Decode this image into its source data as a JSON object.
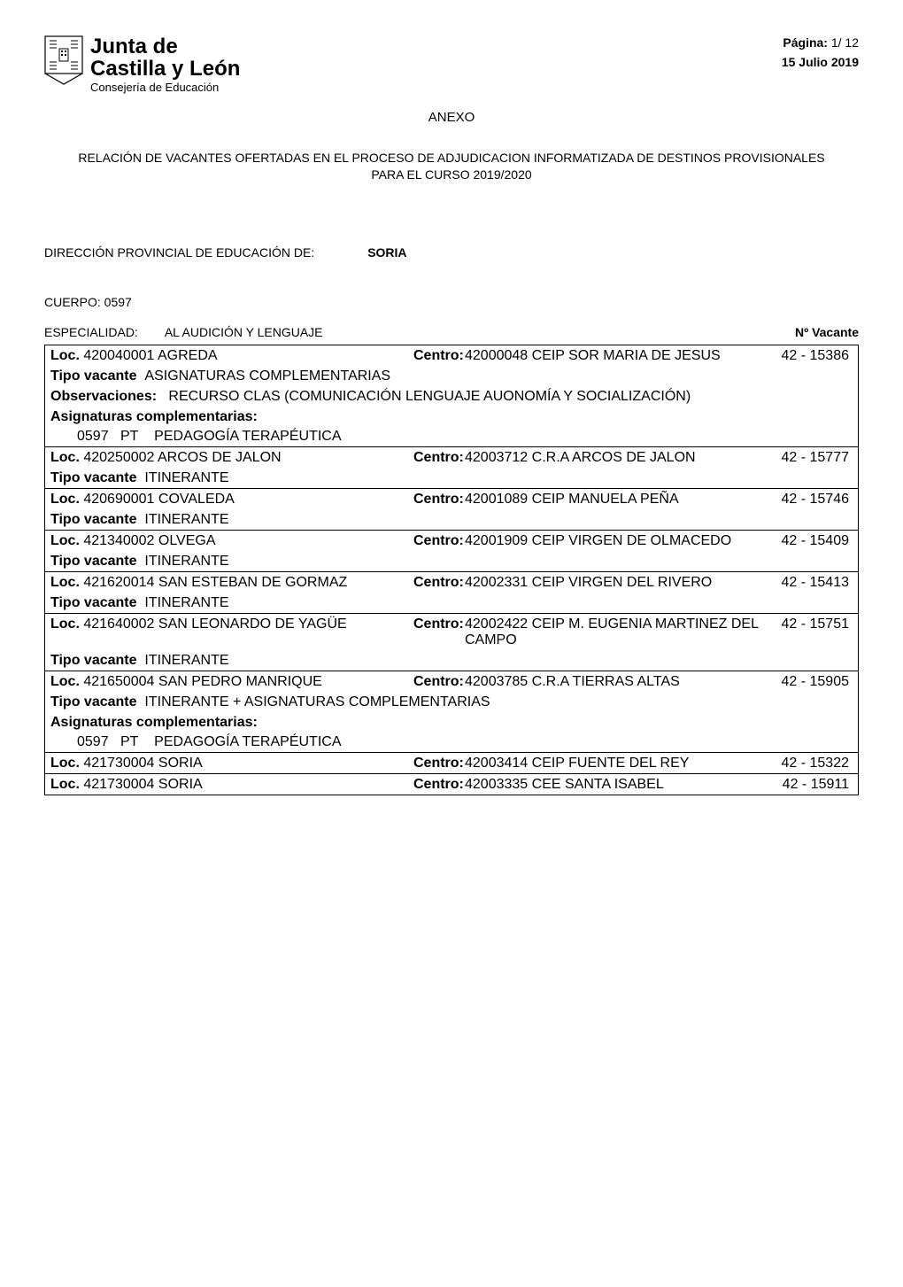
{
  "header": {
    "page_label": "Página:",
    "page_value": "1/ 12",
    "date": "15 Julio 2019",
    "org_line1": "Junta de",
    "org_line2": "Castilla y León",
    "org_line3": "Consejería de Educación"
  },
  "anexo": "ANEXO",
  "relacion": "RELACIÓN  DE VACANTES  OFERTADAS EN EL PROCESO DE ADJUDICACION INFORMATIZADA  DE DESTINOS PROVISIONALES  PARA EL CURSO 2019/2020",
  "direccion": {
    "label": "DIRECCIÓN PROVINCIAL DE EDUCACIÓN DE:",
    "value": "SORIA"
  },
  "cuerpo": "CUERPO:  0597",
  "especialidad": {
    "label": "ESPECIALIDAD:",
    "value": "AL AUDICIÓN Y LENGUAJE",
    "n_vacante_label": "Nº Vacante"
  },
  "labels": {
    "loc": "Loc.",
    "centro": "Centro:",
    "tipo_vacante": "Tipo vacante",
    "observaciones": "Observaciones:",
    "asig_comp": "Asignaturas complementarias:"
  },
  "records": [
    {
      "loc_code": "420040001",
      "loc_name": "AGREDA",
      "centro_code": "42000048",
      "centro_name": "CEIP  SOR MARIA DE JESUS",
      "vacante": "42 - 15386",
      "tipo_vacante": "ASIGNATURAS COMPLEMENTARIAS",
      "observaciones": "RECURSO CLAS (COMUNICACIÓN LENGUAJE AUONOMÍA Y SOCIALIZACIÓN)",
      "asignaturas": [
        {
          "code": "0597",
          "spec": "PT",
          "name": "PEDAGOGÍA TERAPÉUTICA"
        }
      ]
    },
    {
      "loc_code": "420250002",
      "loc_name": "ARCOS DE JALON",
      "centro_code": "42003712",
      "centro_name": "C.R.A   ARCOS DE JALON",
      "vacante": "42 - 15777",
      "tipo_vacante": "ITINERANTE"
    },
    {
      "loc_code": "420690001",
      "loc_name": "COVALEDA",
      "centro_code": "42001089",
      "centro_name": "CEIP  MANUELA PEÑA",
      "vacante": "42 - 15746",
      "tipo_vacante": "ITINERANTE"
    },
    {
      "loc_code": "421340002",
      "loc_name": "OLVEGA",
      "centro_code": "42001909",
      "centro_name": "CEIP  VIRGEN DE OLMACEDO",
      "vacante": "42 - 15409",
      "tipo_vacante": "ITINERANTE"
    },
    {
      "loc_code": "421620014",
      "loc_name": "SAN ESTEBAN DE GORMAZ",
      "centro_code": "42002331",
      "centro_name": "CEIP  VIRGEN DEL RIVERO",
      "vacante": "42 - 15413",
      "tipo_vacante": "ITINERANTE"
    },
    {
      "loc_code": "421640002",
      "loc_name": "SAN LEONARDO DE YAGÜE",
      "centro_code": "42002422",
      "centro_name": "CEIP  M. EUGENIA MARTINEZ DEL CAMPO",
      "vacante": "42 - 15751",
      "tipo_vacante": "ITINERANTE"
    },
    {
      "loc_code": "421650004",
      "loc_name": "SAN PEDRO MANRIQUE",
      "centro_code": "42003785",
      "centro_name": "C.R.A   TIERRAS ALTAS",
      "vacante": "42 - 15905",
      "tipo_vacante": "ITINERANTE + ASIGNATURAS COMPLEMENTARIAS",
      "asignaturas": [
        {
          "code": "0597",
          "spec": "PT",
          "name": "PEDAGOGÍA TERAPÉUTICA"
        }
      ]
    },
    {
      "loc_code": "421730004",
      "loc_name": "SORIA",
      "centro_code": "42003414",
      "centro_name": "CEIP  FUENTE DEL REY",
      "vacante": "42 - 15322"
    },
    {
      "loc_code": "421730004",
      "loc_name": "SORIA",
      "centro_code": "42003335",
      "centro_name": "CEE  SANTA ISABEL",
      "vacante": "42 - 15911"
    }
  ]
}
